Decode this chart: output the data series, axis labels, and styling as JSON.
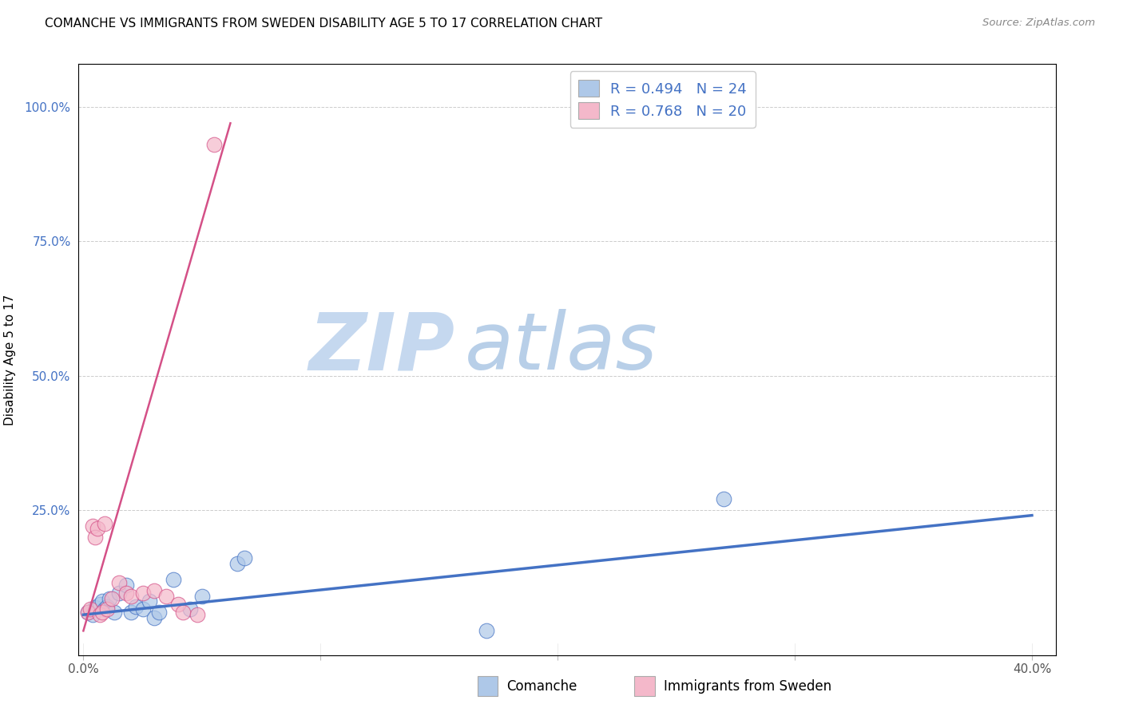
{
  "title": "COMANCHE VS IMMIGRANTS FROM SWEDEN DISABILITY AGE 5 TO 17 CORRELATION CHART",
  "source": "Source: ZipAtlas.com",
  "xlabel_label": "Comanche",
  "ylabel_label": "Disability Age 5 to 17",
  "xlabel2_label": "Immigrants from Sweden",
  "x_tick_labels": [
    "0.0%",
    "",
    "",
    "",
    "40.0%"
  ],
  "x_tick_vals": [
    0.0,
    0.1,
    0.2,
    0.3,
    0.4
  ],
  "y_tick_labels": [
    "100.0%",
    "75.0%",
    "50.0%",
    "25.0%"
  ],
  "y_tick_vals": [
    1.0,
    0.75,
    0.5,
    0.25
  ],
  "xlim": [
    -0.002,
    0.41
  ],
  "ylim": [
    -0.02,
    1.08
  ],
  "legend_r1": "R = 0.494",
  "legend_n1": "N = 24",
  "legend_r2": "R = 0.768",
  "legend_n2": "N = 20",
  "color_blue": "#aec8e8",
  "color_pink": "#f4b8ca",
  "line_blue": "#4472c4",
  "line_pink": "#d45087",
  "watermark_zip": "ZIP",
  "watermark_atlas": "atlas",
  "watermark_color_zip": "#c5d8ef",
  "watermark_color_atlas": "#b8cfe8",
  "blue_scatter_x": [
    0.002,
    0.004,
    0.005,
    0.007,
    0.008,
    0.009,
    0.01,
    0.011,
    0.013,
    0.015,
    0.018,
    0.02,
    0.022,
    0.025,
    0.028,
    0.03,
    0.032,
    0.038,
    0.045,
    0.05,
    0.065,
    0.068,
    0.17,
    0.27
  ],
  "blue_scatter_y": [
    0.06,
    0.055,
    0.068,
    0.075,
    0.08,
    0.065,
    0.07,
    0.085,
    0.06,
    0.095,
    0.11,
    0.06,
    0.07,
    0.065,
    0.08,
    0.05,
    0.06,
    0.12,
    0.065,
    0.09,
    0.15,
    0.16,
    0.025,
    0.27
  ],
  "pink_scatter_x": [
    0.002,
    0.003,
    0.004,
    0.005,
    0.006,
    0.007,
    0.008,
    0.009,
    0.01,
    0.012,
    0.015,
    0.018,
    0.02,
    0.025,
    0.03,
    0.035,
    0.04,
    0.042,
    0.048,
    0.055
  ],
  "pink_scatter_y": [
    0.06,
    0.065,
    0.22,
    0.2,
    0.215,
    0.055,
    0.06,
    0.225,
    0.065,
    0.085,
    0.115,
    0.095,
    0.09,
    0.095,
    0.1,
    0.09,
    0.075,
    0.06,
    0.055,
    0.93
  ],
  "blue_line_x": [
    0.0,
    0.4
  ],
  "blue_line_y": [
    0.055,
    0.24
  ],
  "pink_line_x": [
    0.0,
    0.062
  ],
  "pink_line_y": [
    0.025,
    0.97
  ]
}
